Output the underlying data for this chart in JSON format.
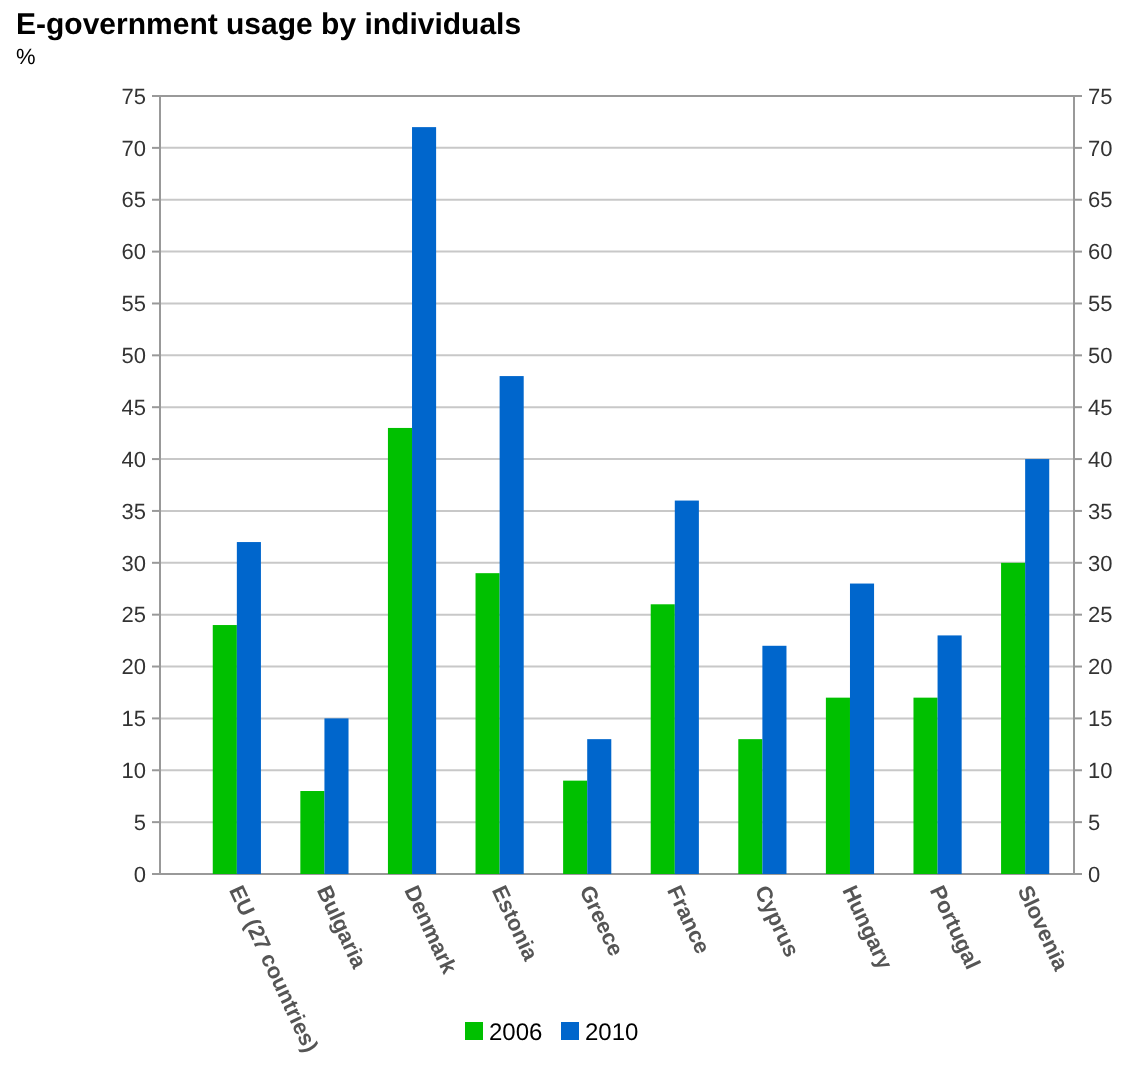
{
  "chart_data": {
    "type": "bar",
    "title": "E-government usage by individuals",
    "ylabel": "%",
    "categories": [
      "EU (27 countries)",
      "Bulgaria",
      "Denmark",
      "Estonia",
      "Greece",
      "France",
      "Cyprus",
      "Hungary",
      "Portugal",
      "Slovenia"
    ],
    "series": [
      {
        "name": "2006",
        "color": "#00c000",
        "values": [
          24,
          8,
          43,
          29,
          9,
          26,
          13,
          17,
          17,
          30
        ]
      },
      {
        "name": "2010",
        "color": "#0066cc",
        "values": [
          32,
          15,
          72,
          48,
          13,
          36,
          22,
          28,
          23,
          40
        ]
      }
    ],
    "ylim": [
      0,
      75
    ],
    "yticks": [
      0,
      5,
      10,
      15,
      20,
      25,
      30,
      35,
      40,
      45,
      50,
      55,
      60,
      65,
      70,
      75
    ],
    "y2lim": [
      0,
      75
    ],
    "y2ticks": [
      0,
      5,
      10,
      15,
      20,
      25,
      30,
      35,
      40,
      45,
      50,
      55,
      60,
      65,
      70,
      75
    ],
    "grid": "y",
    "legend": "bottom"
  }
}
